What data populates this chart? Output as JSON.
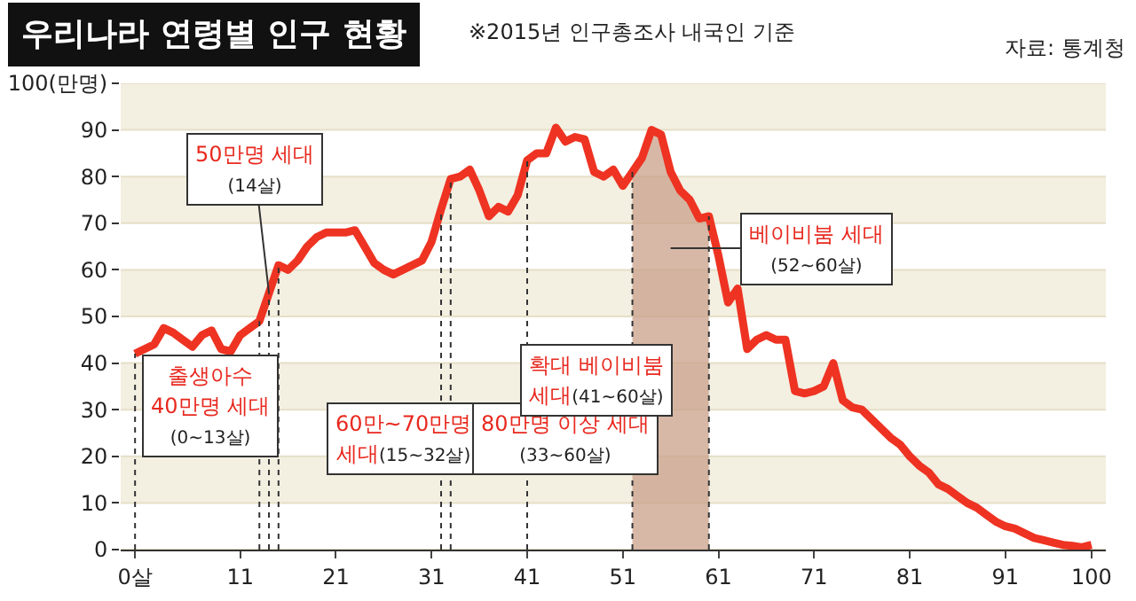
{
  "chart_data": {
    "type": "line",
    "title": "우리나라 연령별 인구 현황",
    "subtitle": "※2015년 인구총조사 내국인 기준",
    "x": [
      0,
      1,
      2,
      3,
      4,
      5,
      6,
      7,
      8,
      9,
      10,
      11,
      12,
      13,
      14,
      15,
      16,
      17,
      18,
      19,
      20,
      21,
      22,
      23,
      24,
      25,
      26,
      27,
      28,
      29,
      30,
      31,
      32,
      33,
      34,
      35,
      36,
      37,
      38,
      39,
      40,
      41,
      42,
      43,
      44,
      45,
      46,
      47,
      48,
      49,
      50,
      51,
      52,
      53,
      54,
      55,
      56,
      57,
      58,
      59,
      60,
      61,
      62,
      63,
      64,
      65,
      66,
      67,
      68,
      69,
      70,
      71,
      72,
      73,
      74,
      75,
      76,
      77,
      78,
      79,
      80,
      81,
      82,
      83,
      84,
      85,
      86,
      87,
      88,
      89,
      90,
      91,
      92,
      93,
      94,
      95,
      96,
      97,
      98,
      99,
      100
    ],
    "series": [
      {
        "color": "#ee3322",
        "values": [
          42,
          43,
          44,
          47.5,
          46.5,
          45,
          43.5,
          46,
          47,
          43,
          42.5,
          46,
          47.5,
          49,
          55,
          61,
          60,
          62,
          65,
          67,
          68,
          68,
          68,
          68.5,
          65,
          61.5,
          60,
          59,
          60,
          61,
          62,
          66,
          73,
          79.5,
          80,
          81.5,
          77,
          71.5,
          73.5,
          72.5,
          76,
          83.5,
          85,
          85,
          90.5,
          87.5,
          88.5,
          88,
          81,
          80,
          81.5,
          78,
          81,
          84,
          90,
          89,
          81,
          77,
          75,
          71,
          71.5,
          63,
          53,
          56,
          43,
          45,
          46,
          45,
          45,
          34,
          33.5,
          34,
          35,
          40,
          32,
          30.5,
          30,
          28,
          26,
          24,
          22.5,
          20,
          18,
          16.5,
          14,
          13,
          11.5,
          10,
          9,
          7.5,
          6,
          5,
          4.5,
          3.5,
          2.5,
          2,
          1.5,
          1,
          0.8,
          0.5,
          1
        ]
      }
    ],
    "xlim": [
      -1.5,
      101.5
    ],
    "xticks": [
      {
        "value": 0,
        "label": "0살"
      },
      11,
      21,
      31,
      41,
      51,
      61,
      71,
      81,
      91,
      100
    ],
    "ylim": [
      0,
      100
    ],
    "yticks": [
      0,
      10,
      20,
      30,
      40,
      50,
      60,
      70,
      80,
      90,
      {
        "value": 100,
        "label": "100(만명)"
      }
    ],
    "grid": "y",
    "marker": "none",
    "line_style": "solid",
    "ref_lines": [
      {
        "axis": "x",
        "value": 0,
        "line_style": "dotted",
        "color": "#333333"
      },
      {
        "axis": "x",
        "value": 13,
        "line_style": "dotted",
        "color": "#333333"
      },
      {
        "axis": "x",
        "value": 14,
        "line_style": "dotted",
        "color": "#333333"
      },
      {
        "axis": "x",
        "value": 15,
        "line_style": "dotted",
        "color": "#333333"
      },
      {
        "axis": "x",
        "value": 32,
        "line_style": "dotted",
        "color": "#333333"
      },
      {
        "axis": "x",
        "value": 33,
        "line_style": "dotted",
        "color": "#333333"
      },
      {
        "axis": "x",
        "value": 41,
        "line_style": "dotted",
        "color": "#333333"
      },
      {
        "axis": "x",
        "value": 52,
        "line_style": "dotted",
        "color": "#333333"
      },
      {
        "axis": "x",
        "value": 60,
        "line_style": "dotted",
        "color": "#333333"
      }
    ],
    "bands": [
      {
        "axis": "x",
        "from": 52,
        "to": 60,
        "color": "#c9a089"
      }
    ],
    "annotations": [
      "자료: 통계청",
      {
        "text": "50만명 세대\n(14살)",
        "x": 14,
        "y": 55
      },
      "베이비붐 세대\n(52~60살)",
      "출생아수\n40만명 세대\n(0~13살)",
      "60만~70만명\n세대(15~32살)",
      "80만명 이상 세대\n(33~60살)",
      "확대 베이비붐\n세대(41~60살)"
    ]
  }
}
